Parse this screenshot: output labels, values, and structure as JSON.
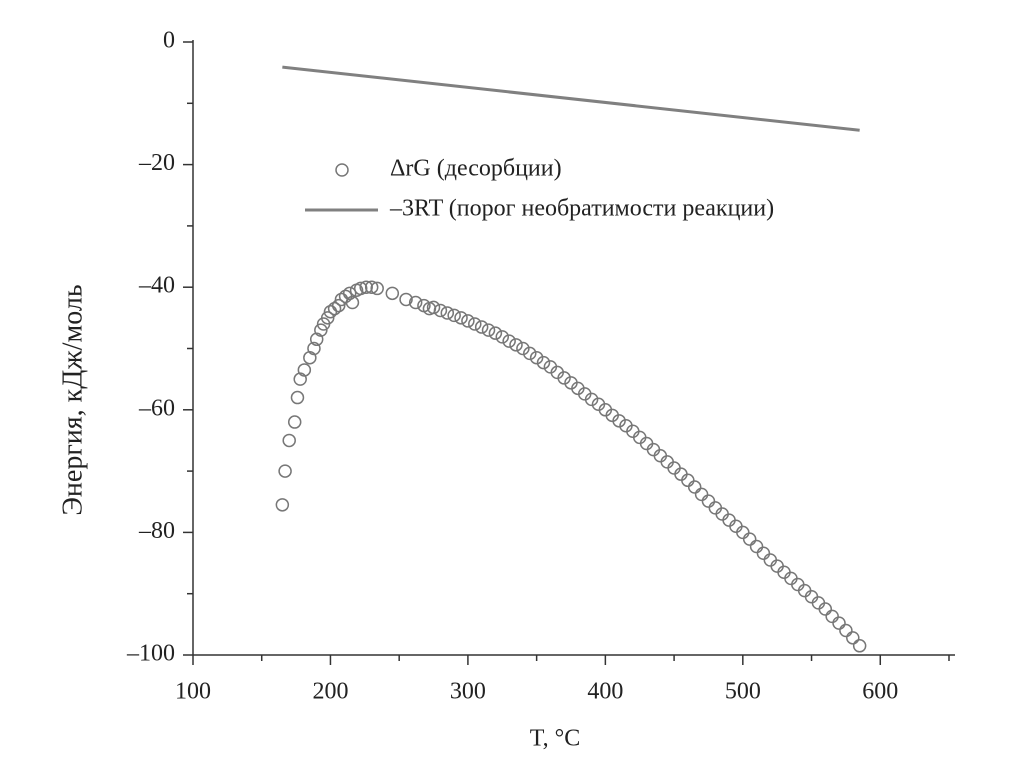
{
  "chart_data": {
    "type": "scatter",
    "xlabel": "T, °C",
    "ylabel": "Энергия, кДж/моль",
    "xlim": [
      100,
      650
    ],
    "ylim": [
      -100,
      0
    ],
    "xticks": [
      100,
      200,
      300,
      400,
      500,
      600
    ],
    "xminorticks": [
      150,
      250,
      350,
      450,
      550,
      650
    ],
    "yticks": [
      {
        "value": -100,
        "label": "–100"
      },
      {
        "value": -80,
        "label": "–80"
      },
      {
        "value": -60,
        "label": "–60"
      },
      {
        "value": -40,
        "label": "–40"
      },
      {
        "value": -20,
        "label": "–20"
      },
      0
    ],
    "yminorticks": [
      -90,
      -70,
      -50,
      -30,
      -10
    ],
    "legend": "upper left",
    "series": [
      {
        "name": "ΔrG (десорбции)",
        "type": "scatter",
        "color": "#777777",
        "x": [
          165,
          167,
          170,
          174,
          176,
          178,
          181,
          185,
          188,
          190,
          193,
          195,
          198,
          200,
          203,
          206,
          208,
          211,
          214,
          216,
          219,
          222,
          226,
          230,
          234,
          245,
          255,
          262,
          268,
          272,
          275,
          280,
          285,
          290,
          295,
          300,
          305,
          310,
          315,
          320,
          325,
          330,
          335,
          340,
          345,
          350,
          355,
          360,
          365,
          370,
          375,
          380,
          385,
          390,
          395,
          400,
          405,
          410,
          415,
          420,
          425,
          430,
          435,
          440,
          445,
          450,
          455,
          460,
          465,
          470,
          475,
          480,
          485,
          490,
          495,
          500,
          505,
          510,
          515,
          520,
          525,
          530,
          535,
          540,
          545,
          550,
          555,
          560,
          565,
          570,
          575,
          580,
          585
        ],
        "values": [
          -75.5,
          -70,
          -65,
          -62,
          -58,
          -55,
          -53.5,
          -51.5,
          -50,
          -48.5,
          -47,
          -46,
          -45,
          -44,
          -43.5,
          -43,
          -42,
          -41.5,
          -41,
          -42.5,
          -40.5,
          -40.2,
          -40,
          -40,
          -40.2,
          -41,
          -42,
          -42.5,
          -43,
          -43.5,
          -43.3,
          -43.8,
          -44.2,
          -44.6,
          -45,
          -45.5,
          -46,
          -46.5,
          -47,
          -47.5,
          -48.1,
          -48.8,
          -49.4,
          -50,
          -50.8,
          -51.5,
          -52.3,
          -53,
          -53.9,
          -54.8,
          -55.6,
          -56.5,
          -57.4,
          -58.3,
          -59.1,
          -60,
          -60.9,
          -61.8,
          -62.6,
          -63.5,
          -64.5,
          -65.5,
          -66.5,
          -67.5,
          -68.5,
          -69.5,
          -70.5,
          -71.5,
          -72.6,
          -73.8,
          -74.9,
          -76,
          -77,
          -78,
          -79,
          -80,
          -81.1,
          -82.3,
          -83.4,
          -84.5,
          -85.5,
          -86.5,
          -87.5,
          -88.5,
          -89.5,
          -90.5,
          -91.5,
          -92.5,
          -93.7,
          -94.8,
          -96,
          -97.2,
          -98.5
        ]
      },
      {
        "name": "–3RT (порог необратимости реакции)",
        "type": "line",
        "color": "#808080",
        "x": [
          165,
          585
        ],
        "values": [
          -4.1,
          -14.4
        ]
      }
    ]
  }
}
